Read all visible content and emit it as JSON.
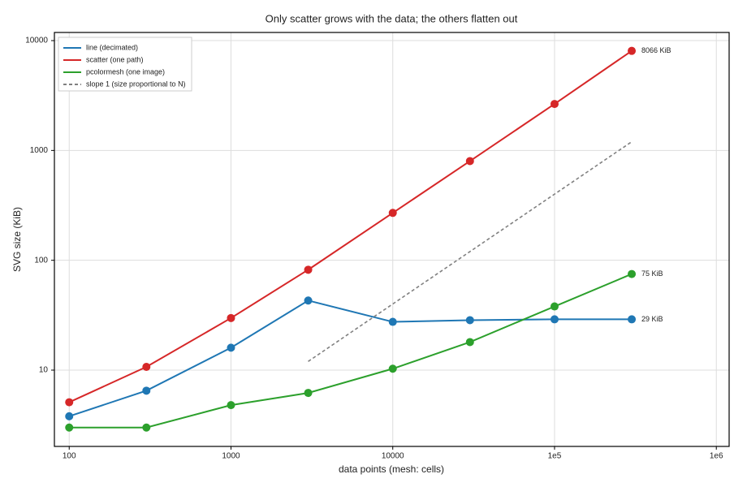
{
  "chart_data": {
    "type": "line",
    "title": "Only scatter grows with the data; the others flatten out",
    "xlabel": "data points (mesh: cells)",
    "ylabel": "SVG size (KiB)",
    "xscale": "log",
    "yscale": "log",
    "xlim": [
      81,
      1200000
    ],
    "ylim": [
      2.02,
      11860
    ],
    "xticks": [
      100,
      1000,
      10000,
      {
        "value": 100000,
        "label": "1e5"
      },
      {
        "value": 1000000,
        "label": "1e6"
      }
    ],
    "yticks": [
      10,
      100,
      1000,
      10000
    ],
    "grid": true,
    "legend": "upper left",
    "x": [
      100,
      300,
      1000,
      3000,
      10000,
      30000,
      100000,
      300000
    ],
    "series": [
      {
        "name": "line (decimated)",
        "color": "#1f77b4",
        "marker": true,
        "values": [
          3.8,
          6.5,
          16,
          43,
          27.5,
          28.5,
          29,
          29
        ],
        "value_labels": [
          null,
          null,
          null,
          null,
          null,
          null,
          null,
          "29 KiB"
        ]
      },
      {
        "name": "scatter (one path)",
        "color": "#d62728",
        "marker": true,
        "values": [
          5.1,
          10.7,
          29.8,
          82,
          270,
          800,
          2650,
          8066
        ],
        "value_labels": [
          null,
          null,
          null,
          null,
          null,
          null,
          null,
          "8066 KiB"
        ]
      },
      {
        "name": "pcolormesh (one image)",
        "color": "#2ca02c",
        "marker": true,
        "values": [
          3.0,
          3.0,
          4.8,
          6.2,
          10.3,
          18,
          38,
          75
        ],
        "value_labels": [
          null,
          null,
          null,
          null,
          null,
          null,
          null,
          "75 KiB"
        ]
      },
      {
        "name": "slope 1 (size proportional to N)",
        "color": "#808080",
        "dashed": true,
        "marker": false,
        "x": [
          3000,
          300000
        ],
        "values": [
          12,
          1200
        ]
      }
    ]
  }
}
